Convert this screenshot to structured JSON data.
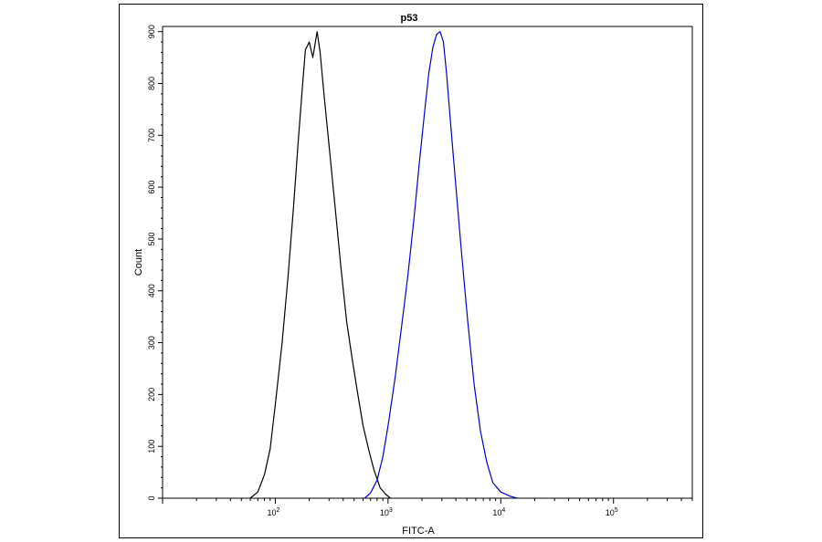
{
  "chart_data": {
    "type": "line",
    "title": "p53",
    "xlabel": "FITC-A",
    "ylabel": "Count",
    "x_scale": "log",
    "xlim": [
      10,
      500000
    ],
    "ylim": [
      0,
      910
    ],
    "x_ticks": [
      {
        "value": 100,
        "base": "10",
        "exp": "2"
      },
      {
        "value": 1000,
        "base": "10",
        "exp": "3"
      },
      {
        "value": 10000,
        "base": "10",
        "exp": "4"
      },
      {
        "value": 100000,
        "base": "10",
        "exp": "5"
      }
    ],
    "y_ticks": [
      0,
      100,
      200,
      300,
      400,
      500,
      600,
      700,
      800,
      900
    ],
    "grid": false,
    "series": [
      {
        "color": "#000000",
        "points": [
          [
            60,
            0
          ],
          [
            70,
            12
          ],
          [
            80,
            45
          ],
          [
            90,
            95
          ],
          [
            100,
            180
          ],
          [
            115,
            300
          ],
          [
            130,
            430
          ],
          [
            145,
            560
          ],
          [
            160,
            690
          ],
          [
            175,
            800
          ],
          [
            185,
            865
          ],
          [
            200,
            880
          ],
          [
            215,
            850
          ],
          [
            235,
            900
          ],
          [
            250,
            860
          ],
          [
            270,
            780
          ],
          [
            300,
            680
          ],
          [
            340,
            560
          ],
          [
            380,
            450
          ],
          [
            430,
            340
          ],
          [
            480,
            270
          ],
          [
            540,
            200
          ],
          [
            600,
            140
          ],
          [
            680,
            90
          ],
          [
            750,
            55
          ],
          [
            850,
            20
          ],
          [
            950,
            8
          ],
          [
            1050,
            0
          ]
        ]
      },
      {
        "color": "#0000cc",
        "points": [
          [
            620,
            0
          ],
          [
            700,
            10
          ],
          [
            800,
            35
          ],
          [
            900,
            80
          ],
          [
            1000,
            140
          ],
          [
            1150,
            230
          ],
          [
            1300,
            320
          ],
          [
            1500,
            430
          ],
          [
            1700,
            540
          ],
          [
            1900,
            650
          ],
          [
            2100,
            740
          ],
          [
            2300,
            820
          ],
          [
            2500,
            870
          ],
          [
            2700,
            895
          ],
          [
            2900,
            900
          ],
          [
            3100,
            880
          ],
          [
            3300,
            820
          ],
          [
            3600,
            720
          ],
          [
            4000,
            600
          ],
          [
            4500,
            470
          ],
          [
            5100,
            340
          ],
          [
            5800,
            220
          ],
          [
            6600,
            130
          ],
          [
            7500,
            70
          ],
          [
            8500,
            30
          ],
          [
            10000,
            12
          ],
          [
            12000,
            4
          ],
          [
            14000,
            0
          ]
        ]
      }
    ]
  }
}
